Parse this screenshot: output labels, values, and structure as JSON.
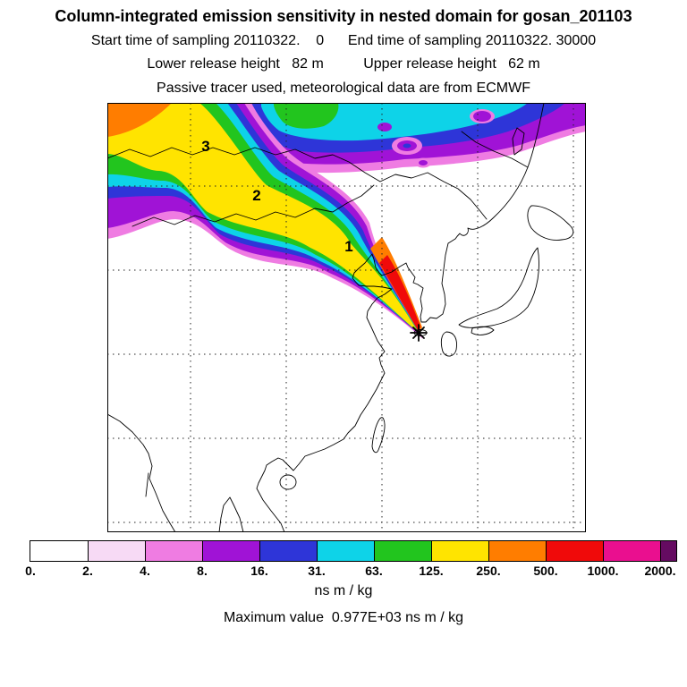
{
  "header": {
    "title": "Column-integrated emission sensitivity in nested domain for gosan_201103",
    "sampling_line": "Start time of sampling 20110322.    0      End time of sampling 20110322. 30000",
    "release_line": "Lower release height   82 m          Upper release height   62 m",
    "tracer_line": "Passive tracer used, meteorological data are from ECMWF"
  },
  "footer": {
    "units_label": "ns m / kg",
    "max_label": "Maximum value  0.977E+03 ns m / kg"
  },
  "chart_data": {
    "type": "heatmap",
    "title": "Column-integrated emission sensitivity in nested domain for gosan_201103",
    "station": "gosan_201103",
    "sampling_start": "20110322. 0",
    "sampling_end": "20110322. 30000",
    "lower_release_height_m": 82,
    "upper_release_height_m": 62,
    "tracer": "Passive tracer",
    "meteorology": "ECMWF",
    "units": "ns m / kg",
    "maximum_value": "0.977E+03",
    "maximum_value_units": "ns m / kg",
    "grid": "dashed latitude-longitude gridlines, 5 x 5",
    "legend_position": "bottom colorbar",
    "source_marker": "asterisk at Gosan (Jeju Island)",
    "trajectory_day_labels": [
      "1",
      "2",
      "3"
    ],
    "colorbar": {
      "levels": [
        0,
        2,
        4,
        8,
        16,
        31,
        63,
        125,
        250,
        500,
        1000,
        2000
      ],
      "tick_labels": [
        "0.",
        "2.",
        "4.",
        "8.",
        "16.",
        "31.",
        "63.",
        "125.",
        "250.",
        "500.",
        "1000.",
        "2000."
      ],
      "interval_colors": [
        "#ffffff",
        "#f7daf5",
        "#ef7ce2",
        "#a013d6",
        "#2e35d8",
        "#0ed3e8",
        "#22c51e",
        "#ffe400",
        "#ff7d00",
        "#f00a0a",
        "#ea0f8f"
      ],
      "over_color": "#650b61"
    }
  }
}
